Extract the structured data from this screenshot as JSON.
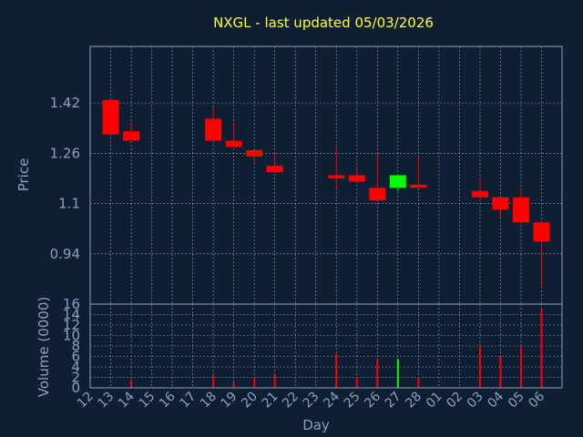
{
  "chart_data": [
    {
      "type": "candlestick",
      "title": "NXGL - last updated 05/03/2026",
      "ylabel": "Price",
      "yticks": [
        1.42,
        1.26,
        1.1,
        0.94
      ],
      "ylim": [
        0.78,
        1.6
      ],
      "grid": true,
      "colors": {
        "down": "#ff0000",
        "up": "#00ff00",
        "background": "#0f1f33",
        "axis": "#8aa0c0",
        "title": "#ffff33"
      },
      "candles": [
        {
          "x": "12",
          "open": 1.43,
          "high": 1.43,
          "low": 1.32,
          "close": 1.32
        },
        {
          "x": "13",
          "open": 1.33,
          "high": 1.36,
          "low": 1.3,
          "close": 1.3
        },
        {
          "x": "17",
          "open": 1.37,
          "high": 1.41,
          "low": 1.3,
          "close": 1.3
        },
        {
          "x": "18",
          "open": 1.3,
          "high": 1.36,
          "low": 1.28,
          "close": 1.28
        },
        {
          "x": "19",
          "open": 1.27,
          "high": 1.27,
          "low": 1.23,
          "close": 1.25
        },
        {
          "x": "20",
          "open": 1.22,
          "high": 1.26,
          "low": 1.2,
          "close": 1.2
        },
        {
          "x": "23",
          "open": 1.19,
          "high": 1.28,
          "low": 1.15,
          "close": 1.18
        },
        {
          "x": "24",
          "open": 1.19,
          "high": 1.22,
          "low": 1.17,
          "close": 1.17
        },
        {
          "x": "25",
          "open": 1.15,
          "high": 1.26,
          "low": 1.11,
          "close": 1.11
        },
        {
          "x": "26",
          "open": 1.15,
          "high": 1.19,
          "low": 1.14,
          "close": 1.19
        },
        {
          "x": "27",
          "open": 1.16,
          "high": 1.25,
          "low": 1.15,
          "close": 1.15
        },
        {
          "x": "02",
          "open": 1.14,
          "high": 1.18,
          "low": 1.11,
          "close": 1.12
        },
        {
          "x": "03",
          "open": 1.12,
          "high": 1.12,
          "low": 1.05,
          "close": 1.08
        },
        {
          "x": "04",
          "open": 1.12,
          "high": 1.15,
          "low": 1.04,
          "close": 1.04
        },
        {
          "x": "05",
          "open": 1.04,
          "high": 1.04,
          "low": 0.83,
          "close": 0.98
        }
      ]
    },
    {
      "type": "bar",
      "ylabel": "Volume (0000)",
      "xlabel": "Day",
      "ylim": [
        0,
        16
      ],
      "yticks": [
        0,
        2,
        4,
        6,
        8,
        10,
        12,
        14,
        16
      ],
      "categories": [
        "12",
        "13",
        "14",
        "15",
        "16",
        "17",
        "18",
        "19",
        "20",
        "21",
        "22",
        "23",
        "24",
        "25",
        "26",
        "27",
        "28",
        "01",
        "02",
        "03",
        "04",
        "05",
        "06"
      ],
      "values": [
        0,
        1.5,
        0,
        0,
        0,
        2.5,
        1,
        2,
        2.5,
        0,
        0,
        6.5,
        2,
        5.5,
        5.5,
        2,
        0,
        0,
        8,
        6,
        8,
        15,
        0
      ],
      "bar_colors": [
        "#ff0000",
        "#ff0000",
        "#ff0000",
        "#ff0000",
        "#ff0000",
        "#ff0000",
        "#ff0000",
        "#ff0000",
        "#ff0000",
        "#ff0000",
        "#ff0000",
        "#ff0000",
        "#ff0000",
        "#ff0000",
        "#00ff00",
        "#ff0000",
        "#ff0000",
        "#ff0000",
        "#ff0000",
        "#ff0000",
        "#ff0000",
        "#ff0000",
        "#ff0000"
      ]
    }
  ]
}
